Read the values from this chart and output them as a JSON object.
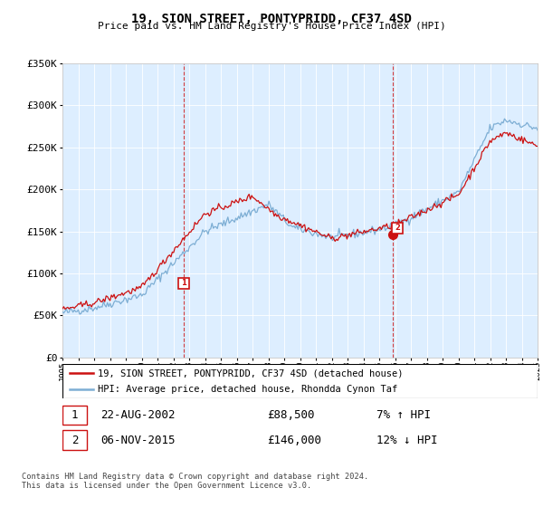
{
  "title": "19, SION STREET, PONTYPRIDD, CF37 4SD",
  "subtitle": "Price paid vs. HM Land Registry's House Price Index (HPI)",
  "ylim": [
    0,
    350000
  ],
  "yticks": [
    0,
    50000,
    100000,
    150000,
    200000,
    250000,
    300000,
    350000
  ],
  "ytick_labels": [
    "£0",
    "£50K",
    "£100K",
    "£150K",
    "£200K",
    "£250K",
    "£300K",
    "£350K"
  ],
  "hpi_color": "#7daed4",
  "price_color": "#cc1111",
  "chart_bg": "#ddeeff",
  "marker1_x": 2002.65,
  "marker1_y": 88500,
  "marker1_label": "22-AUG-2002",
  "marker1_price": "£88,500",
  "marker1_hpi": "7% ↑ HPI",
  "marker2_x": 2015.85,
  "marker2_y": 146000,
  "marker2_label": "06-NOV-2015",
  "marker2_price": "£146,000",
  "marker2_hpi": "12% ↓ HPI",
  "legend_line1": "19, SION STREET, PONTYPRIDD, CF37 4SD (detached house)",
  "legend_line2": "HPI: Average price, detached house, Rhondda Cynon Taf",
  "footer1": "Contains HM Land Registry data © Crown copyright and database right 2024.",
  "footer2": "This data is licensed under the Open Government Licence v3.0.",
  "xmin": 1995,
  "xmax": 2025
}
